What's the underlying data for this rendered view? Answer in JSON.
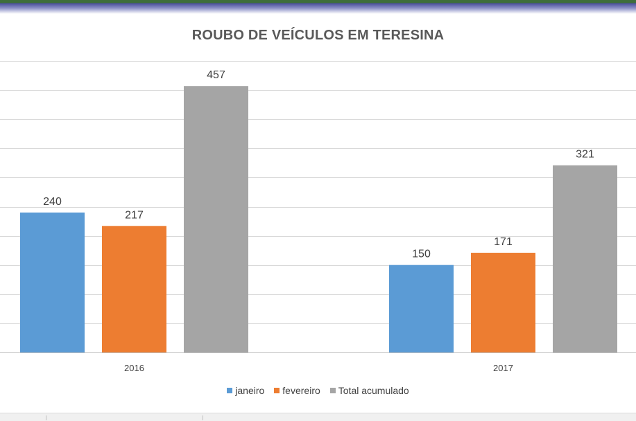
{
  "chart_data": {
    "type": "bar",
    "title": "ROUBO DE VEÍCULOS EM TERESINA",
    "categories": [
      "2016",
      "2017"
    ],
    "series": [
      {
        "name": "janeiro",
        "values": [
          240,
          150
        ],
        "color": "#5b9bd5"
      },
      {
        "name": "fevereiro",
        "values": [
          217,
          171
        ],
        "color": "#ed7d31"
      },
      {
        "name": "Total acumulado",
        "values": [
          457,
          321
        ],
        "color": "#a5a5a5"
      }
    ],
    "ylim": [
      0,
      500
    ],
    "grid": true,
    "legend_position": "bottom",
    "xlabel": "",
    "ylabel": ""
  }
}
